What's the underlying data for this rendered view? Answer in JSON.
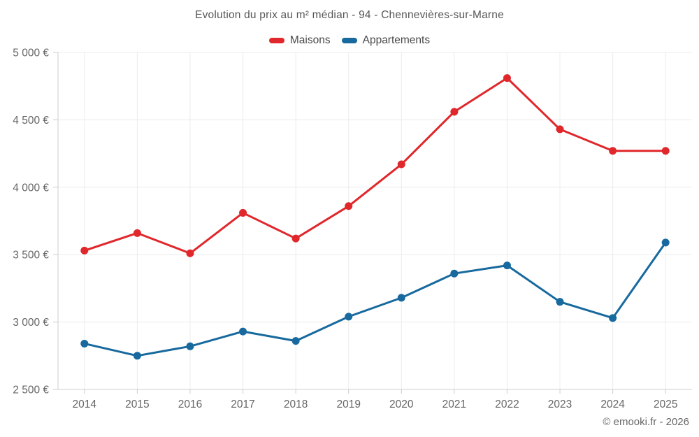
{
  "footer": {
    "copyright": "© emooki.fr - 2026"
  },
  "chart_data": {
    "type": "line",
    "title": "Evolution du prix au m² médian - 94 - Chennevières-sur-Marne",
    "categories": [
      "2014",
      "2015",
      "2016",
      "2017",
      "2018",
      "2019",
      "2020",
      "2021",
      "2022",
      "2023",
      "2024",
      "2025"
    ],
    "series": [
      {
        "name": "Maisons",
        "color": "#e0282c",
        "values": [
          3530,
          3660,
          3510,
          3810,
          3620,
          3860,
          4170,
          4560,
          4810,
          4430,
          4270,
          4270
        ]
      },
      {
        "name": "Appartements",
        "color": "#17699e",
        "values": [
          2840,
          2750,
          2820,
          2930,
          2860,
          3040,
          3180,
          3360,
          3420,
          3150,
          3030,
          3590
        ]
      }
    ],
    "ylim": [
      2500,
      5000
    ],
    "ytick_step": 500,
    "ytick_labels": [
      "2 500 €",
      "3 000 €",
      "3 500 €",
      "4 000 €",
      "4 500 €",
      "5 000 €"
    ],
    "xlabel": "",
    "ylabel": "",
    "grid": true,
    "legend_position": "top",
    "colors": {
      "title": "#575757",
      "tick_label": "#666666",
      "grid": "#ececec",
      "axis": "#cccccc",
      "background": "#ffffff"
    }
  }
}
